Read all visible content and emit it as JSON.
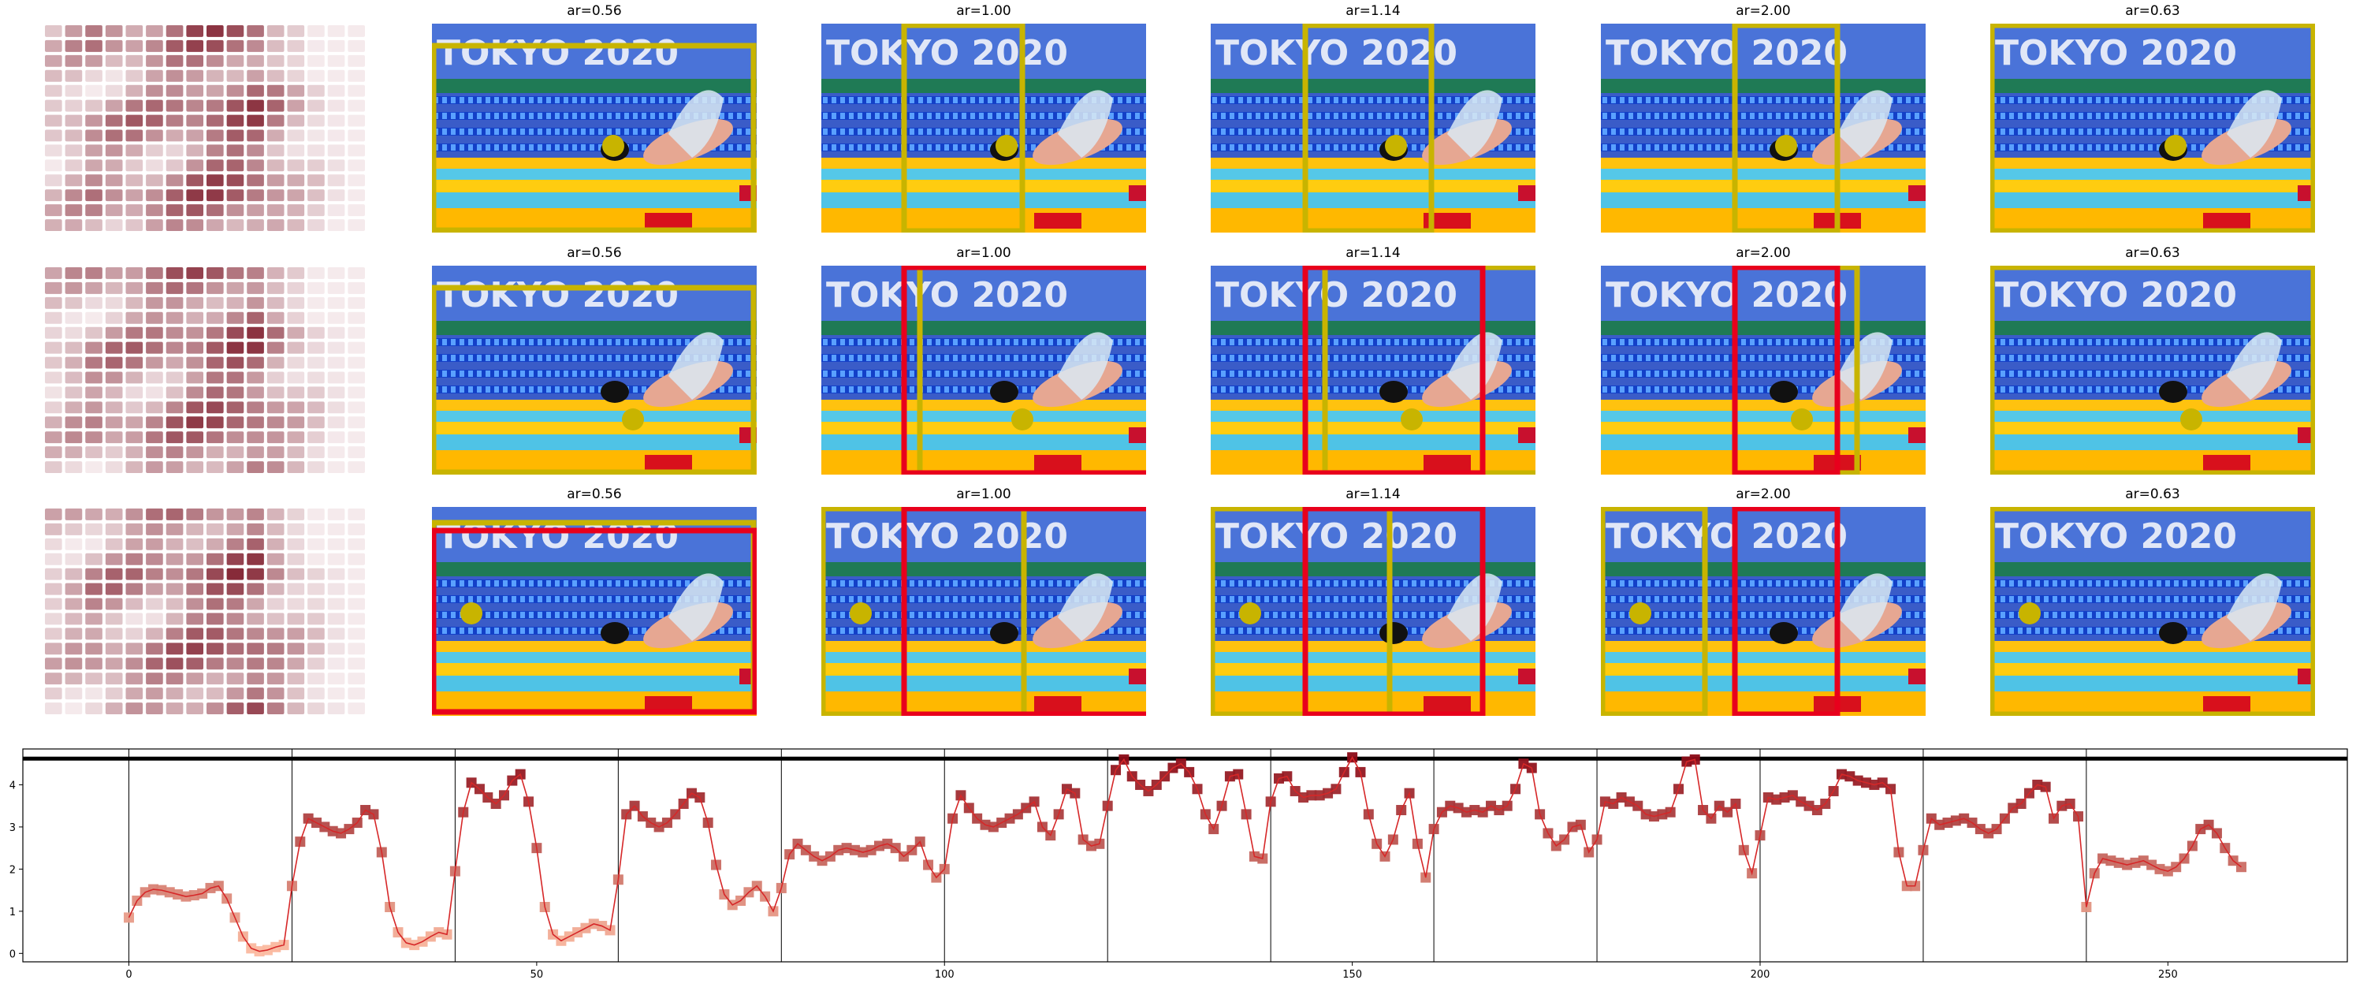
{
  "panel_titles": [
    "ar=0.56",
    "ar=1.00",
    "ar=1.14",
    "ar=2.00",
    "ar=0.63"
  ],
  "photo_text": "TOKYO 2020",
  "colors": {
    "box_yellow": "#c8b400",
    "box_red": "#e8001c",
    "line": "#d62728",
    "marker_dark": "#8b0a16",
    "marker_light": "#fcbba1",
    "heat_low": "#f7eef0",
    "heat_high": "#7f1d2c"
  },
  "chart_data": {
    "type": "line",
    "title": "",
    "xlabel": "",
    "ylabel": "",
    "xlim": [
      -13,
      272
    ],
    "ylim": [
      -0.2,
      4.85
    ],
    "xticks": [
      0,
      50,
      100,
      150,
      200,
      250
    ],
    "yticks": [
      0,
      1,
      2,
      3,
      4
    ],
    "reference_line_y": 4.62,
    "segment_boundaries": [
      0,
      20,
      40,
      60,
      80,
      100,
      120,
      140,
      160,
      180,
      200,
      220,
      240
    ],
    "x_start": 0,
    "values": [
      0.85,
      1.25,
      1.45,
      1.52,
      1.5,
      1.45,
      1.4,
      1.35,
      1.38,
      1.42,
      1.55,
      1.6,
      1.3,
      0.85,
      0.4,
      0.12,
      0.05,
      0.08,
      0.15,
      0.2,
      1.6,
      2.65,
      3.2,
      3.1,
      3.0,
      2.9,
      2.85,
      2.95,
      3.1,
      3.4,
      3.3,
      2.4,
      1.1,
      0.5,
      0.25,
      0.2,
      0.28,
      0.4,
      0.5,
      0.45,
      1.95,
      3.35,
      4.05,
      3.9,
      3.7,
      3.55,
      3.75,
      4.1,
      4.25,
      3.6,
      2.5,
      1.1,
      0.45,
      0.3,
      0.4,
      0.5,
      0.6,
      0.7,
      0.65,
      0.55,
      1.75,
      3.3,
      3.5,
      3.25,
      3.1,
      3.0,
      3.1,
      3.3,
      3.55,
      3.8,
      3.7,
      3.1,
      2.1,
      1.4,
      1.15,
      1.25,
      1.45,
      1.6,
      1.35,
      1.0,
      1.55,
      2.35,
      2.6,
      2.45,
      2.3,
      2.2,
      2.3,
      2.45,
      2.5,
      2.45,
      2.4,
      2.45,
      2.55,
      2.6,
      2.5,
      2.3,
      2.45,
      2.65,
      2.1,
      1.8,
      2.0,
      3.2,
      3.75,
      3.45,
      3.2,
      3.05,
      3.0,
      3.1,
      3.2,
      3.3,
      3.45,
      3.6,
      3.0,
      2.8,
      3.3,
      3.9,
      3.8,
      2.7,
      2.55,
      2.6,
      3.5,
      4.35,
      4.6,
      4.2,
      4.0,
      3.85,
      4.0,
      4.2,
      4.4,
      4.5,
      4.3,
      3.9,
      3.3,
      2.95,
      3.5,
      4.2,
      4.25,
      3.3,
      2.3,
      2.25,
      3.6,
      4.15,
      4.2,
      3.85,
      3.7,
      3.75,
      3.75,
      3.8,
      3.9,
      4.3,
      4.65,
      4.3,
      3.3,
      2.6,
      2.3,
      2.7,
      3.4,
      3.8,
      2.6,
      1.8,
      2.95,
      3.35,
      3.5,
      3.45,
      3.35,
      3.4,
      3.35,
      3.5,
      3.4,
      3.5,
      3.9,
      4.5,
      4.4,
      3.3,
      2.85,
      2.55,
      2.7,
      3.0,
      3.05,
      2.4,
      2.7,
      3.6,
      3.55,
      3.7,
      3.6,
      3.5,
      3.3,
      3.25,
      3.3,
      3.35,
      3.9,
      4.55,
      4.6,
      3.4,
      3.2,
      3.5,
      3.35,
      3.55,
      2.45,
      1.9,
      2.8,
      3.7,
      3.65,
      3.7,
      3.75,
      3.6,
      3.5,
      3.4,
      3.55,
      3.85,
      4.25,
      4.2,
      4.1,
      4.05,
      4.0,
      4.05,
      3.9,
      2.4,
      1.6,
      1.6,
      2.45,
      3.2,
      3.05,
      3.1,
      3.15,
      3.2,
      3.1,
      2.95,
      2.85,
      2.95,
      3.2,
      3.45,
      3.55,
      3.8,
      4.0,
      3.95,
      3.2,
      3.5,
      3.55,
      3.25,
      1.1,
      1.9,
      2.25,
      2.2,
      2.15,
      2.1,
      2.15,
      2.2,
      2.1,
      2.0,
      1.95,
      2.05,
      2.25,
      2.55,
      2.95,
      3.05,
      2.85,
      2.5,
      2.2,
      2.05
    ]
  }
}
